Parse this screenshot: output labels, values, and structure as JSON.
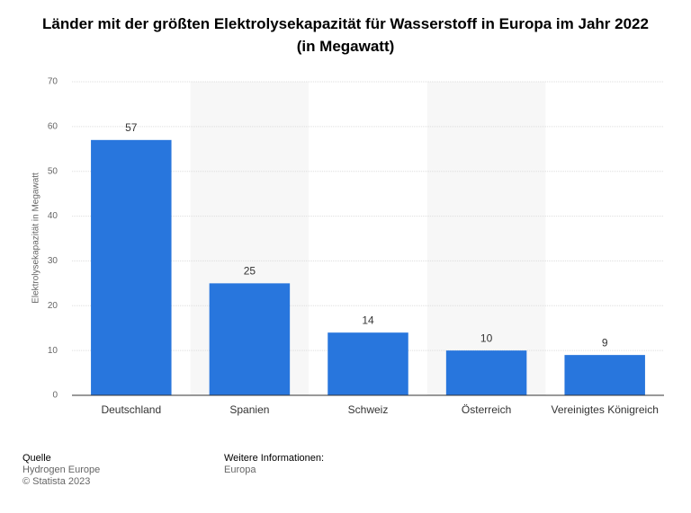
{
  "chart_data": {
    "type": "bar",
    "title": "Länder mit der größten Elektrolysekapazität für Wasserstoff in Europa im Jahr 2022 (in Megawatt)",
    "ylabel": "Elektrolysekapazität in Megawatt",
    "categories": [
      "Deutschland",
      "Spanien",
      "Schweiz",
      "Österreich",
      "Vereinigtes Königreich"
    ],
    "values": [
      57,
      25,
      14,
      10,
      9
    ],
    "color": "#2876dd",
    "ylim": [
      0,
      70
    ],
    "yticks": [
      0,
      10,
      20,
      30,
      40,
      50,
      60,
      70
    ],
    "grid": true
  },
  "footer": {
    "source_label": "Quelle",
    "source": "Hydrogen Europe",
    "copyright": "© Statista 2023",
    "info_label": "Weitere Informationen:",
    "info": "Europa"
  }
}
